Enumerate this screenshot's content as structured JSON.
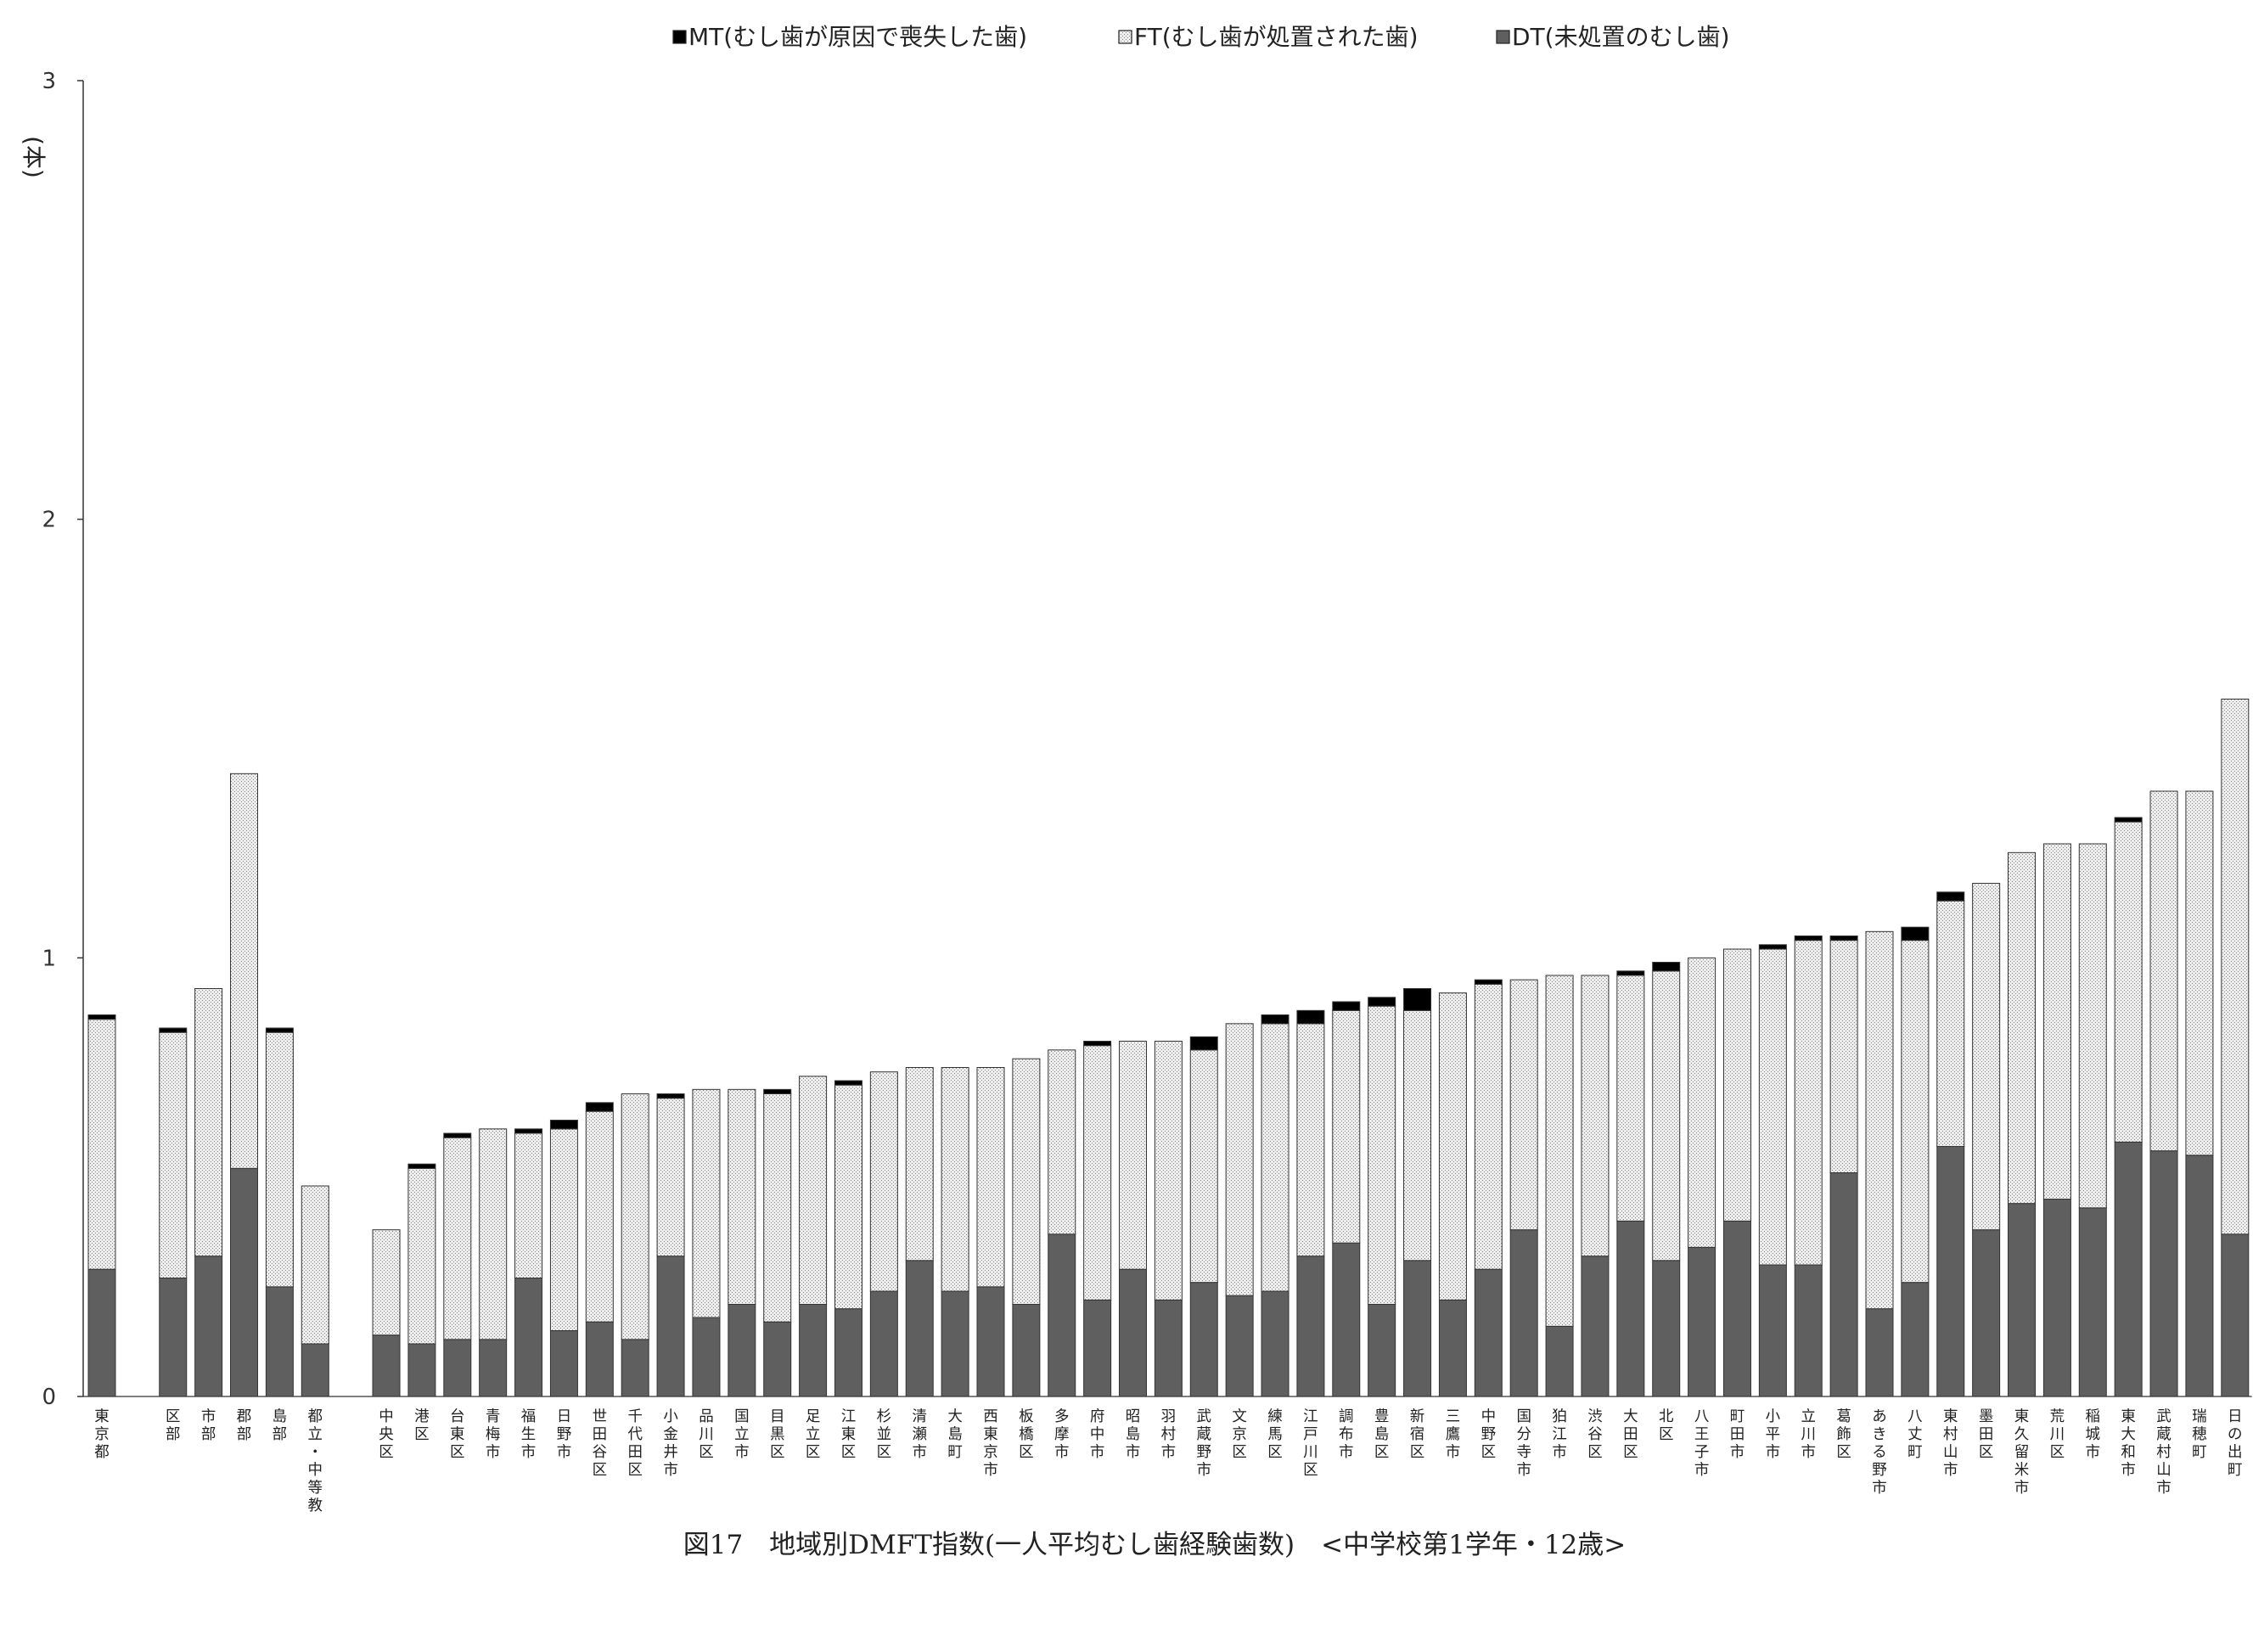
{
  "chart_data": {
    "type": "bar",
    "stacked": true,
    "title": "図17　地域別DMFT指数(一人平均むし歯経験歯数)　<中学校第1学年・12歳>",
    "ylabel": "(本)",
    "xlabel": "",
    "ylim": [
      0,
      3
    ],
    "yticks": [
      "0",
      "1",
      "2",
      "3"
    ],
    "grid": false,
    "legend_position": "top",
    "legend": [
      {
        "key": "MT",
        "label": "MT(むし歯が原因で喪失した歯)",
        "color": "#000000",
        "pattern": "solid"
      },
      {
        "key": "FT",
        "label": "FT(むし歯が処置された歯)",
        "color": "#d4d4d4",
        "pattern": "dotted"
      },
      {
        "key": "DT",
        "label": "DT(未処置のむし歯)",
        "color": "#5f5f5f",
        "pattern": "solid"
      }
    ],
    "categories": [
      "東京都",
      "",
      "区部",
      "市部",
      "郡部",
      "島部",
      "都立・中等教",
      "",
      "中央区",
      "港区",
      "台東区",
      "青梅市",
      "福生市",
      "日野市",
      "世田谷区",
      "千代田区",
      "小金井市",
      "品川区",
      "国立市",
      "目黒区",
      "足立区",
      "江東区",
      "杉並区",
      "清瀬市",
      "大島町",
      "西東京市",
      "板橋区",
      "多摩市",
      "府中市",
      "昭島市",
      "羽村市",
      "武蔵野市",
      "文京区",
      "練馬区",
      "江戸川区",
      "調布市",
      "豊島区",
      "新宿区",
      "三鷹市",
      "中野区",
      "国分寺市",
      "狛江市",
      "渋谷区",
      "大田区",
      "北区",
      "八王子市",
      "町田市",
      "小平市",
      "立川市",
      "葛飾区",
      "あきる野市",
      "八丈町",
      "東村山市",
      "墨田区",
      "東久留米市",
      "荒川区",
      "稲城市",
      "東大和市",
      "武蔵村山市",
      "瑞穂町",
      "日の出町"
    ],
    "series": [
      {
        "name": "DT(未処置のむし歯)",
        "key": "DT",
        "values": [
          0.29,
          null,
          0.27,
          0.32,
          0.52,
          0.25,
          0.12,
          null,
          0.14,
          0.12,
          0.13,
          0.13,
          0.27,
          0.15,
          0.17,
          0.13,
          0.32,
          0.18,
          0.21,
          0.17,
          0.21,
          0.2,
          0.24,
          0.31,
          0.24,
          0.25,
          0.21,
          0.37,
          0.22,
          0.29,
          0.22,
          0.26,
          0.23,
          0.24,
          0.32,
          0.35,
          0.21,
          0.31,
          0.22,
          0.29,
          0.38,
          0.16,
          0.32,
          0.4,
          0.31,
          0.34,
          0.4,
          0.3,
          0.3,
          0.51,
          0.2,
          0.26,
          0.57,
          0.38,
          0.44,
          0.45,
          0.43,
          0.58,
          0.56,
          0.55,
          0.37
        ]
      },
      {
        "name": "FT(むし歯が処置された歯)",
        "key": "FT",
        "values": [
          0.57,
          null,
          0.56,
          0.61,
          0.9,
          0.58,
          0.36,
          null,
          0.24,
          0.4,
          0.46,
          0.48,
          0.33,
          0.46,
          0.48,
          0.56,
          0.36,
          0.52,
          0.49,
          0.52,
          0.52,
          0.51,
          0.5,
          0.44,
          0.51,
          0.5,
          0.56,
          0.42,
          0.58,
          0.52,
          0.59,
          0.53,
          0.62,
          0.61,
          0.53,
          0.53,
          0.68,
          0.57,
          0.7,
          0.65,
          0.57,
          0.8,
          0.64,
          0.56,
          0.66,
          0.66,
          0.62,
          0.72,
          0.74,
          0.53,
          0.86,
          0.78,
          0.56,
          0.79,
          0.8,
          0.81,
          0.83,
          0.73,
          0.82,
          0.83,
          1.22
        ]
      },
      {
        "name": "MT(むし歯が原因で喪失した歯)",
        "key": "MT",
        "values": [
          0.01,
          null,
          0.01,
          0.0,
          0.0,
          0.01,
          0.0,
          null,
          0.0,
          0.01,
          0.01,
          0.0,
          0.01,
          0.02,
          0.02,
          0.0,
          0.01,
          0.0,
          0.0,
          0.01,
          0.0,
          0.01,
          0.0,
          0.0,
          0.0,
          0.0,
          0.0,
          0.0,
          0.01,
          0.0,
          0.0,
          0.03,
          0.0,
          0.02,
          0.03,
          0.02,
          0.02,
          0.05,
          0.0,
          0.01,
          0.0,
          0.0,
          0.0,
          0.01,
          0.02,
          0.0,
          0.0,
          0.01,
          0.01,
          0.01,
          0.0,
          0.03,
          0.02,
          0.0,
          0.0,
          0.0,
          0.0,
          0.01,
          0.0,
          0.0,
          0.0
        ]
      }
    ]
  }
}
